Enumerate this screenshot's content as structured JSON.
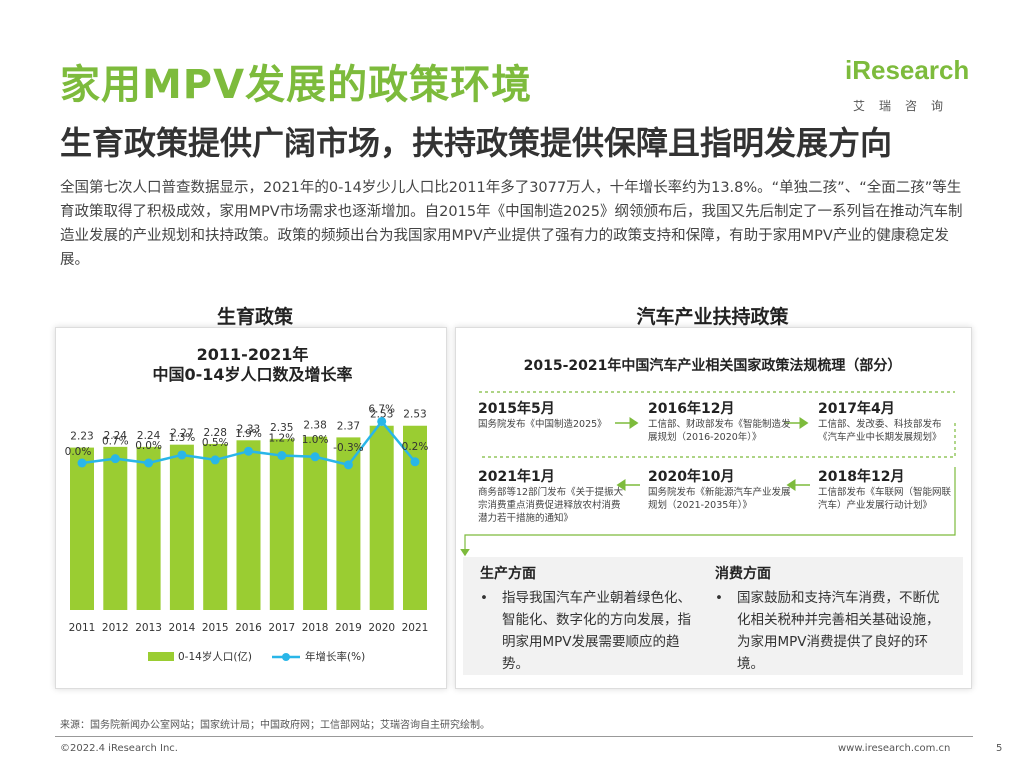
{
  "header": {
    "title": "家用MPV发展的政策环境",
    "subtitle": "生育政策提供广阔市场，扶持政策提供保障且指明发展方向",
    "intro": "全国第七次人口普查数据显示，2021年的0-14岁少儿人口比2011年多了3077万人，十年增长率约为13.8%。“单独二孩”、“全面二孩”等生育政策取得了积极成效，家用MPV市场需求也逐渐增加。自2015年《中国制造2025》纲领颁布后，我国又先后制定了一系列旨在推动汽车制造业发展的产业规划和扶持政策。政策的频频出台为我国家用MPV产业提供了强有力的政策支持和保障，有助于家用MPV产业的健康稳定发展。"
  },
  "logo": {
    "main": "iResearch",
    "sub": "艾瑞咨询"
  },
  "left_section": {
    "heading": "生育政策"
  },
  "right_section": {
    "heading": "汽车产业扶持政策"
  },
  "chart_data": {
    "type": "bar+line",
    "title_line1": "2011-2021年",
    "title_line2": "中国0-14岁人口数及增长率",
    "categories": [
      "2011",
      "2012",
      "2013",
      "2014",
      "2015",
      "2016",
      "2017",
      "2018",
      "2019",
      "2020",
      "2021"
    ],
    "series": [
      {
        "name": "0-14岁人口(亿)",
        "type": "bar",
        "color": "#9acd32",
        "values": [
          2.23,
          2.24,
          2.24,
          2.27,
          2.28,
          2.33,
          2.35,
          2.38,
          2.37,
          2.53,
          2.53
        ],
        "labels": [
          "2.23",
          "2.24",
          "2.24",
          "2.27",
          "2.28",
          "2.33",
          "2.35",
          "2.38",
          "2.37",
          "2.53",
          "2.53"
        ]
      },
      {
        "name": "年增长率(%)",
        "type": "line",
        "color": "#29b6e8",
        "values": [
          0.0,
          0.7,
          0.0,
          1.3,
          0.5,
          1.9,
          1.2,
          1.0,
          -0.3,
          6.7,
          0.2
        ],
        "labels": [
          "0.0%",
          "0.7%",
          "0.0%",
          "1.3%",
          "0.5%",
          "1.9%",
          "1.2%",
          "1.0%",
          "-0.3%",
          "6.7%",
          "0.2%"
        ]
      }
    ],
    "legend_position": "bottom"
  },
  "policy_timeline": {
    "title": "2015-2021年中国汽车产业相关国家政策法规梳理（部分）",
    "events": [
      {
        "date": "2015年5月",
        "text": "国务院发布《中国制造2025》"
      },
      {
        "date": "2016年12月",
        "text": "工信部、财政部发布《智能制造发展规划（2016-2020年）》"
      },
      {
        "date": "2017年4月",
        "text": "工信部、发改委、科技部发布《汽车产业中长期发展规划》"
      },
      {
        "date": "2021年1月",
        "text": "商务部等12部门发布《关于提振大宗消费重点消费促进释放农村消费潜力若干措施的通知》"
      },
      {
        "date": "2020年10月",
        "text": "国务院发布《新能源汽车产业发展规划（2021-2035年）》"
      },
      {
        "date": "2018年12月",
        "text": "工信部发布《车联网（智能网联汽车）产业发展行动计划》"
      }
    ]
  },
  "production": {
    "title": "生产方面",
    "bullet": "•",
    "text": "指导我国汽车产业朝着绿色化、智能化、数字化的方向发展，指明家用MPV发展需要顺应的趋势。"
  },
  "consumption": {
    "title": "消费方面",
    "bullet": "•",
    "text": "国家鼓励和支持汽车消费，不断优化相关税种并完善相关基础设施，为家用MPV消费提供了良好的环境。"
  },
  "footer": {
    "source": "来源：国务院新闻办公室网站；国家统计局；中国政府网；工信部网站；艾瑞咨询自主研究绘制。",
    "copyright": "©2022.4 iResearch Inc.",
    "website": "www.iresearch.com.cn",
    "page": "5"
  },
  "colors": {
    "accent": "#7dbb3c",
    "line": "#29b6e8",
    "bar": "#9acd32"
  }
}
